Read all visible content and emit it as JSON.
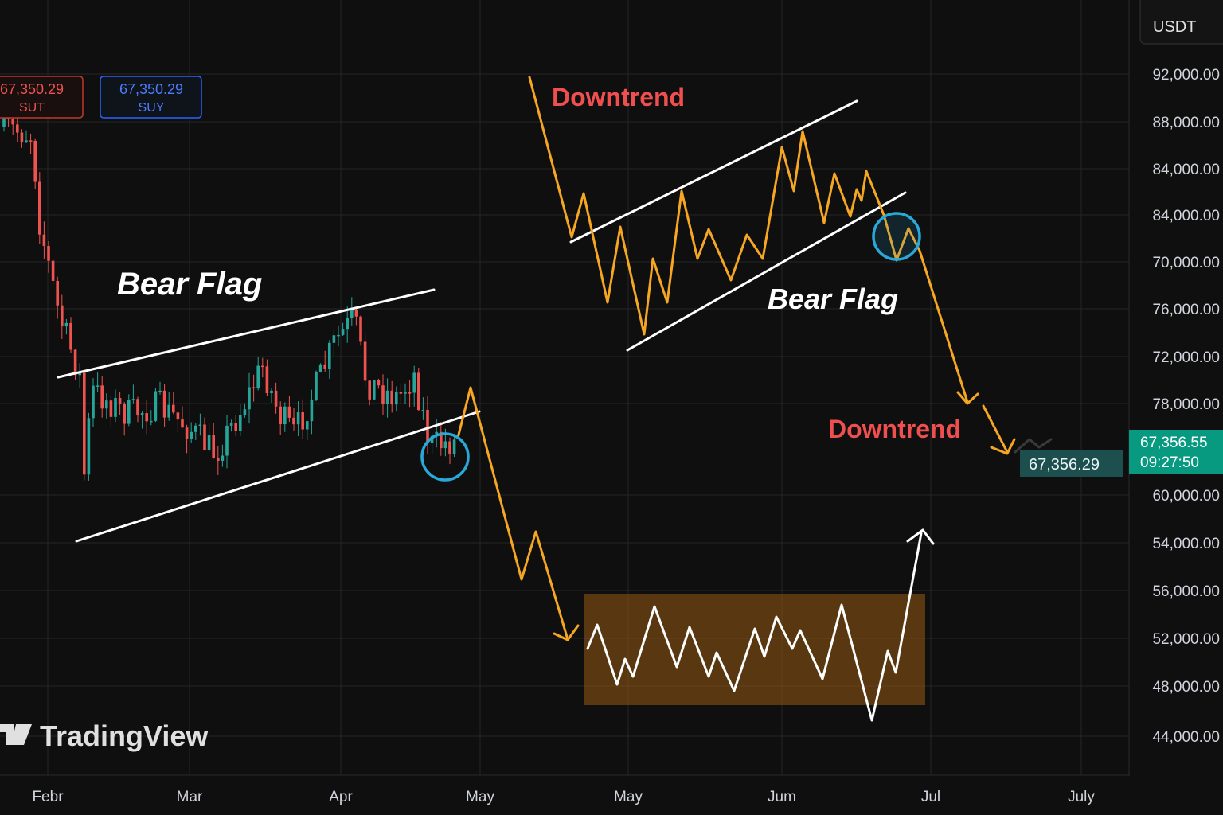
{
  "currency": "USDT",
  "price_axis": [
    "92,000.00",
    "88,000.00",
    "84,000.00",
    "84,000.00",
    "70,000.00",
    "76,000.00",
    "72,000.00",
    "78,000.00",
    "60,000.00",
    "54,000.00",
    "56,000.00",
    "52,000.00",
    "48,000.00",
    "44,000.00"
  ],
  "time_axis": [
    "Febr",
    "Mar",
    "Apr",
    "May",
    "May",
    "Jum",
    "Jul",
    "July"
  ],
  "price_tags": {
    "sell": {
      "price": "67,350.29",
      "label": "SUT"
    },
    "buy": {
      "price": "67,350.29",
      "label": "SUY"
    }
  },
  "last_price": {
    "price": "67,356.55",
    "countdown": "09:27:50"
  },
  "cursor_label": "67,356.29",
  "annotations": [
    "Bear Flag",
    "Downtrend",
    "Bear Flag",
    "Downtrend"
  ],
  "logo": "TradingView"
}
